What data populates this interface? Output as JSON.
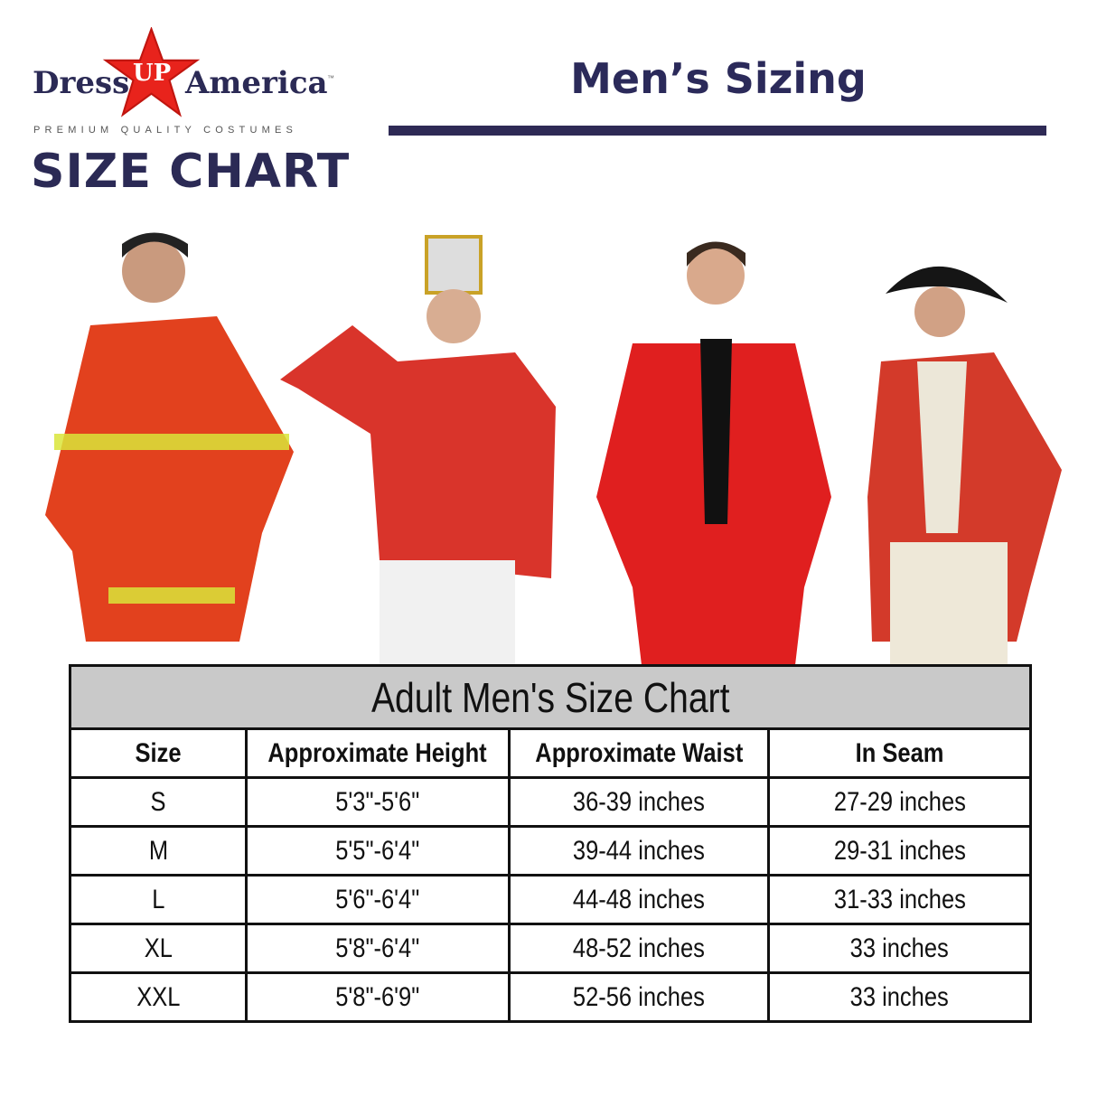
{
  "logo": {
    "brand_left": "Dress",
    "brand_star": "UP",
    "brand_right": "America",
    "trademark": "™",
    "tagline": "PREMIUM QUALITY COSTUMES",
    "star_color": "#e8231c"
  },
  "heading": "SIZE CHART",
  "title": "Men’s Sizing",
  "accent_color": "#2b2a55",
  "figures": [
    "firefighter-costume",
    "toy-soldier-costume",
    "red-suit-costume",
    "colonial-redcoat-costume"
  ],
  "table": {
    "caption": "Adult Men's Size Chart",
    "headers": [
      "Size",
      "Approximate Height",
      "Approximate Waist",
      "In Seam"
    ],
    "rows": [
      [
        "S",
        "5'3\"-5'6\"",
        "36-39 inches",
        "27-29 inches"
      ],
      [
        "M",
        "5'5\"-6'4\"",
        "39-44 inches",
        "29-31 inches"
      ],
      [
        "L",
        "5'6\"-6'4\"",
        "44-48 inches",
        "31-33 inches"
      ],
      [
        "XL",
        "5'8\"-6'4\"",
        "48-52 inches",
        "33 inches"
      ],
      [
        "XXL",
        "5'8\"-6'9\"",
        "52-56 inches",
        "33 inches"
      ]
    ]
  }
}
